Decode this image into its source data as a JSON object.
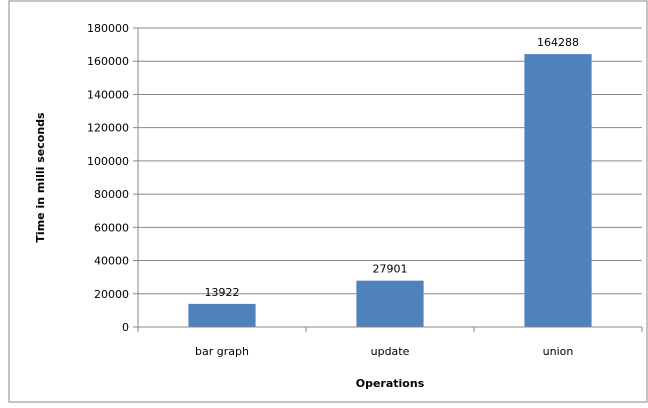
{
  "chart_data": {
    "type": "bar",
    "title": "",
    "xlabel": "Operations",
    "ylabel": "Time in  milli seconds",
    "categories": [
      "bar graph",
      "update",
      "union"
    ],
    "series": [
      {
        "values": [
          13922,
          27901,
          164288
        ]
      }
    ],
    "data_labels": [
      "13922",
      "27901",
      "164288"
    ],
    "ylim": [
      0,
      180000
    ],
    "yticks": [
      0,
      20000,
      40000,
      60000,
      80000,
      100000,
      120000,
      140000,
      160000,
      180000
    ],
    "grid": true,
    "legend": "none",
    "bar_color": "#4F81BD"
  }
}
